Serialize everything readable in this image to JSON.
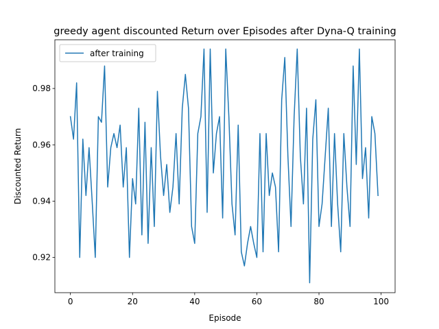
{
  "chart_data": {
    "type": "line",
    "title": "greedy agent discounted Return over Episodes after Dyna-Q training",
    "xlabel": "Episode",
    "ylabel": "Discounted Return",
    "xlim": [
      -5,
      104.5
    ],
    "ylim": [
      0.9075,
      0.9973
    ],
    "xticks": [
      0,
      20,
      40,
      60,
      80,
      100
    ],
    "yticks": [
      0.92,
      0.94,
      0.96,
      0.98
    ],
    "xtick_labels": [
      "0",
      "20",
      "40",
      "60",
      "80",
      "100"
    ],
    "ytick_labels": [
      "0.92",
      "0.94",
      "0.96",
      "0.98"
    ],
    "grid": false,
    "legend": {
      "position": "top-left",
      "entries": [
        "after training"
      ]
    },
    "series": [
      {
        "name": "after training",
        "color": "#1f77b4",
        "x": [
          0,
          1,
          2,
          3,
          4,
          5,
          6,
          7,
          8,
          9,
          10,
          11,
          12,
          13,
          14,
          15,
          16,
          17,
          18,
          19,
          20,
          21,
          22,
          23,
          24,
          25,
          26,
          27,
          28,
          29,
          30,
          31,
          32,
          33,
          34,
          35,
          36,
          37,
          38,
          39,
          40,
          41,
          42,
          43,
          44,
          45,
          46,
          47,
          48,
          49,
          50,
          51,
          52,
          53,
          54,
          55,
          56,
          57,
          58,
          59,
          60,
          61,
          62,
          63,
          64,
          65,
          66,
          67,
          68,
          69,
          70,
          71,
          72,
          73,
          74,
          75,
          76,
          77,
          78,
          79,
          80,
          81,
          82,
          83,
          84,
          85,
          86,
          87,
          88,
          89,
          90,
          91,
          92,
          93,
          94,
          95,
          96,
          97,
          98,
          99
        ],
        "values": [
          0.97,
          0.962,
          0.982,
          0.92,
          0.962,
          0.942,
          0.959,
          0.94,
          0.92,
          0.97,
          0.968,
          0.988,
          0.945,
          0.959,
          0.964,
          0.959,
          0.967,
          0.945,
          0.959,
          0.92,
          0.948,
          0.939,
          0.973,
          0.928,
          0.968,
          0.925,
          0.959,
          0.931,
          0.979,
          0.956,
          0.942,
          0.953,
          0.936,
          0.945,
          0.964,
          0.939,
          0.973,
          0.985,
          0.973,
          0.931,
          0.925,
          0.964,
          0.97,
          0.994,
          0.936,
          0.994,
          0.95,
          0.964,
          0.97,
          0.934,
          0.994,
          0.97,
          0.939,
          0.928,
          0.967,
          0.922,
          0.917,
          0.925,
          0.931,
          0.925,
          0.92,
          0.964,
          0.922,
          0.964,
          0.942,
          0.95,
          0.945,
          0.922,
          0.976,
          0.991,
          0.956,
          0.931,
          0.97,
          0.994,
          0.956,
          0.939,
          0.973,
          0.911,
          0.962,
          0.976,
          0.931,
          0.939,
          0.956,
          0.973,
          0.931,
          0.964,
          0.939,
          0.922,
          0.964,
          0.945,
          0.931,
          0.988,
          0.953,
          0.994,
          0.948,
          0.959,
          0.934,
          0.97,
          0.964,
          0.942
        ]
      }
    ]
  }
}
